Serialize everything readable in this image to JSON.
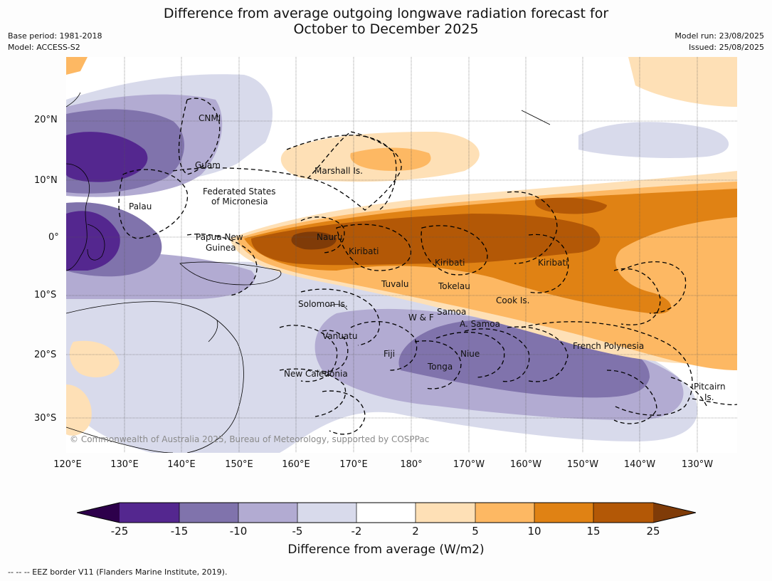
{
  "title_line1": "Difference from average outgoing longwave radiation forecast for",
  "title_line2": "October to December 2025",
  "meta_left": {
    "base_period": "Base period: 1981-2018",
    "model": "Model: ACCESS-S2"
  },
  "meta_right": {
    "model_run": "Model run: 23/08/2025",
    "issued": "Issued: 25/08/2025"
  },
  "lat_ticks": [
    "20°N",
    "10°N",
    "0°",
    "10°S",
    "20°S",
    "30°S"
  ],
  "lon_ticks": [
    "120°E",
    "130°E",
    "140°E",
    "150°E",
    "160°E",
    "170°E",
    "180°",
    "170°W",
    "160°W",
    "150°W",
    "140°W",
    "130°W"
  ],
  "place_labels": {
    "cnmi": "CNMI",
    "guam": "Guam",
    "marshall": "Marshall Is.",
    "fsm1": "Federated States",
    "fsm2": "of Micronesia",
    "palau": "Palau",
    "png1": "Papua New",
    "png2": "Guinea",
    "nauru": "Nauru",
    "kiribati1": "Kiribati",
    "kiribati2": "Kiribati",
    "kiribati3": "Kiribati",
    "tuvalu": "Tuvalu",
    "tokelau": "Tokelau",
    "cook": "Cook Is.",
    "solomon": "Solomon Is.",
    "wf": "W & F",
    "samoa": "Samoa",
    "asamoa": "A. Samoa",
    "vanuatu": "Vanuatu",
    "fiji": "Fiji",
    "niue": "Niue",
    "tonga": "Tonga",
    "french_polynesia": "French Polynesia",
    "new_caledonia": "New Caledonia",
    "pitcairn1": "Pitcairn",
    "pitcairn2": "Is."
  },
  "copyright": "© Commonwealth of Australia 2025, Bureau of Meteorology, supported by COSPPac",
  "colorbar": {
    "ticks": [
      "-25",
      "-15",
      "-10",
      "-5",
      "-2",
      "2",
      "5",
      "10",
      "15",
      "25"
    ],
    "colors": {
      "under": "#2d004b",
      "c1": "#54278f",
      "c2": "#8073ac",
      "c3": "#b2abd2",
      "c4": "#d8daeb",
      "c5": "#ffffff",
      "c6": "#fee0b6",
      "c7": "#fdb863",
      "c8": "#e08214",
      "c9": "#b35806",
      "over": "#7f3b08"
    },
    "label": "Difference from average (W/m2)"
  },
  "footnote": "--  --  -- EEZ border V11 (Flanders Marine Institute, 2019)."
}
